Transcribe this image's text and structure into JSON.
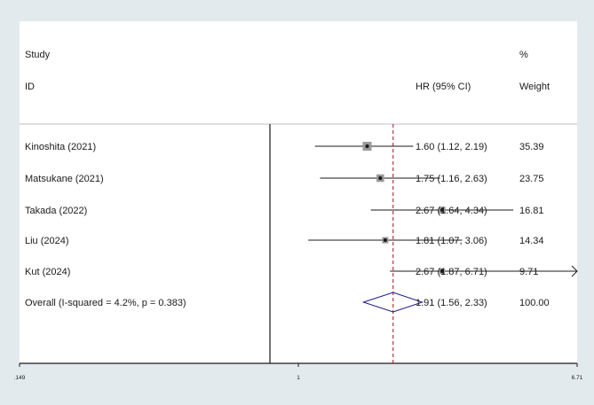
{
  "chart_data": {
    "type": "forest",
    "title": "",
    "header": {
      "study_line1": "Study",
      "study_line2": "ID",
      "effect_label": "HR (95% CI)",
      "weight_line1": "%",
      "weight_line2": "Weight"
    },
    "studies": [
      {
        "label": "Kinoshita (2021)",
        "hr": 1.6,
        "lower": 1.12,
        "upper": 2.19,
        "ci_text": "1.60 (1.12, 2.19)",
        "weight": 35.39,
        "weight_text": "35.39"
      },
      {
        "label": "Matsukane (2021)",
        "hr": 1.75,
        "lower": 1.16,
        "upper": 2.63,
        "ci_text": "1.75 (1.16, 2.63)",
        "weight": 23.75,
        "weight_text": "23.75"
      },
      {
        "label": "Takada (2022)",
        "hr": 2.67,
        "lower": 1.64,
        "upper": 4.34,
        "ci_text": "2.67 (1.64, 4.34)",
        "weight": 16.81,
        "weight_text": "16.81"
      },
      {
        "label": "Liu (2024)",
        "hr": 1.81,
        "lower": 1.07,
        "upper": 3.06,
        "ci_text": "1.81 (1.07, 3.06)",
        "weight": 14.34,
        "weight_text": "14.34"
      },
      {
        "label": "Kut (2024)",
        "hr": 2.67,
        "lower": 1.87,
        "upper": 6.71,
        "ci_text": "2.67 (1.87, 6.71)",
        "weight": 9.71,
        "weight_text": "9.71",
        "arrow_right": true
      }
    ],
    "overall": {
      "label": "Overall  (I-squared = 4.2%, p = 0.383)",
      "hr": 1.91,
      "lower": 1.56,
      "upper": 2.33,
      "ci_text": "1.91 (1.56, 2.33)",
      "weight_text": "100.00"
    },
    "x_scale": "log",
    "x_ticks": [
      {
        "value": 0.149,
        "label": ".149"
      },
      {
        "value": 1,
        "label": "1"
      },
      {
        "value": 6.71,
        "label": "6.71"
      }
    ],
    "null_line": 1,
    "xlim": [
      0.149,
      6.71
    ],
    "colors": {
      "background": "#e3eaee",
      "plot_bg": "#ffffff",
      "overall_line": "#a52a2a",
      "diamond": "#1a1a8c",
      "ink": "#1a1a1a",
      "box": "#9a9a9a"
    }
  }
}
